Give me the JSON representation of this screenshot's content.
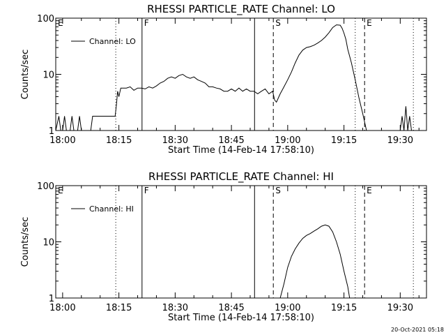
{
  "footer": {
    "timestamp": "20-Oct-2021 05:18"
  },
  "chart_data": [
    {
      "type": "line",
      "title": "RHESSI PARTICLE_RATE Channel: LO",
      "xlabel": "Start Time (14-Feb-14 17:58:10)",
      "ylabel": "Counts/sec",
      "xlim": [
        "17:58:10",
        "19:37:00"
      ],
      "ylim": [
        1,
        100
      ],
      "yscale": "log",
      "x_tick_labels": [
        "18:00",
        "18:15",
        "18:30",
        "18:45",
        "19:00",
        "19:15",
        "19:30"
      ],
      "y_tick_labels": [
        "1",
        "10",
        "100"
      ],
      "legend": {
        "entries": [
          "Channel: LO"
        ],
        "position": "top-left"
      },
      "event_markers": [
        {
          "label": "E",
          "time": "17:58:10",
          "style": "dotted"
        },
        {
          "label": "",
          "time": "18:14:10",
          "style": "dotted"
        },
        {
          "label": "F",
          "time": "18:21:10",
          "style": "solid"
        },
        {
          "label": "",
          "time": "18:51:10",
          "style": "solid"
        },
        {
          "label": "S",
          "time": "18:56:10",
          "style": "dashed"
        },
        {
          "label": "",
          "time": "19:18:00",
          "style": "dotted"
        },
        {
          "label": "E",
          "time": "19:20:30",
          "style": "dashed"
        },
        {
          "label": "",
          "time": "19:33:30",
          "style": "dotted"
        }
      ],
      "series": [
        {
          "name": "Channel: LO",
          "x": [
            "17:58:10",
            "17:59:00",
            "17:59:30",
            "18:00:00",
            "18:00:30",
            "18:01:00",
            "18:01:30",
            "18:02:00",
            "18:02:30",
            "18:03:00",
            "18:03:30",
            "18:04:00",
            "18:04:30",
            "18:05:00",
            "18:05:30",
            "18:06:00",
            "18:06:30",
            "18:07:00",
            "18:07:30",
            "18:08:00",
            "18:09:00",
            "18:10:00",
            "18:11:00",
            "18:12:00",
            "18:13:00",
            "18:14:00",
            "18:14:20",
            "18:14:40",
            "18:15:00",
            "18:15:30",
            "18:16:00",
            "18:17:00",
            "18:18:00",
            "18:19:00",
            "18:20:00",
            "18:21:00",
            "18:22:00",
            "18:23:00",
            "18:24:00",
            "18:25:00",
            "18:26:00",
            "18:27:00",
            "18:28:00",
            "18:29:00",
            "18:30:00",
            "18:31:00",
            "18:32:00",
            "18:33:00",
            "18:34:00",
            "18:35:00",
            "18:36:00",
            "18:37:00",
            "18:38:00",
            "18:39:00",
            "18:40:00",
            "18:41:00",
            "18:42:00",
            "18:43:00",
            "18:44:00",
            "18:45:00",
            "18:46:00",
            "18:47:00",
            "18:48:00",
            "18:49:00",
            "18:50:00",
            "18:51:00",
            "18:52:00",
            "18:53:00",
            "18:54:00",
            "18:55:00",
            "18:56:00",
            "18:56:30",
            "18:57:00",
            "18:58:00",
            "18:59:00",
            "19:00:00",
            "19:01:00",
            "19:02:00",
            "19:03:00",
            "19:04:00",
            "19:05:00",
            "19:06:00",
            "19:07:00",
            "19:08:00",
            "19:09:00",
            "19:10:00",
            "19:11:00",
            "19:12:00",
            "19:13:00",
            "19:14:00",
            "19:14:30",
            "19:15:00",
            "19:15:30",
            "19:16:00",
            "19:17:00",
            "19:18:00",
            "19:19:00",
            "19:20:00",
            "19:21:00",
            "19:22:00",
            "19:23:00",
            "19:24:00",
            "19:25:00",
            "19:26:00",
            "19:27:00",
            "19:28:00",
            "19:29:00",
            "19:30:00",
            "19:30:30",
            "19:31:00",
            "19:31:30",
            "19:32:00",
            "19:32:30",
            "19:33:00",
            "19:33:30",
            "19:34:00"
          ],
          "y": [
            1.0,
            1.8,
            1.0,
            1.0,
            1.8,
            1.0,
            1.0,
            1.0,
            1.8,
            1.0,
            1.0,
            1.0,
            1.8,
            1.0,
            1.0,
            1.0,
            1.0,
            1.0,
            1.0,
            1.8,
            1.8,
            1.8,
            1.8,
            1.8,
            1.8,
            1.8,
            2.8,
            5.0,
            4.0,
            5.7,
            5.7,
            5.7,
            6.0,
            5.2,
            5.7,
            5.7,
            5.5,
            6.0,
            5.7,
            6.2,
            7.0,
            7.5,
            8.5,
            9.0,
            8.5,
            9.5,
            10.0,
            9.0,
            8.5,
            9.0,
            8.0,
            7.5,
            7.0,
            6.0,
            6.0,
            5.7,
            5.5,
            5.0,
            5.0,
            5.5,
            5.0,
            5.7,
            5.0,
            5.5,
            5.0,
            5.0,
            4.5,
            5.0,
            5.5,
            4.5,
            5.0,
            3.5,
            3.2,
            4.5,
            6.0,
            8.0,
            11.0,
            16.0,
            22.0,
            27.0,
            30.0,
            31.0,
            33.0,
            36.0,
            40.0,
            46.0,
            55.0,
            68.0,
            76.0,
            75.0,
            66.0,
            54.0,
            42.0,
            28.0,
            16.0,
            8.0,
            3.8,
            2.0,
            1.0,
            1.0,
            1.0,
            1.0,
            1.0,
            1.0,
            1.0,
            1.0,
            1.0,
            1.0,
            1.8,
            1.0,
            2.7,
            1.0,
            1.8,
            1.0,
            1.0,
            1.0
          ]
        }
      ]
    },
    {
      "type": "line",
      "title": "RHESSI PARTICLE_RATE Channel: HI",
      "xlabel": "Start Time (14-Feb-14 17:58:10)",
      "ylabel": "Counts/sec",
      "xlim": [
        "17:58:10",
        "19:37:00"
      ],
      "ylim": [
        1,
        100
      ],
      "yscale": "log",
      "x_tick_labels": [
        "18:00",
        "18:15",
        "18:30",
        "18:45",
        "19:00",
        "19:15",
        "19:30"
      ],
      "y_tick_labels": [
        "1",
        "10",
        "100"
      ],
      "legend": {
        "entries": [
          "Channel: HI"
        ],
        "position": "top-left"
      },
      "event_markers": [
        {
          "label": "E",
          "time": "17:58:10",
          "style": "dotted"
        },
        {
          "label": "",
          "time": "18:14:10",
          "style": "dotted"
        },
        {
          "label": "F",
          "time": "18:21:10",
          "style": "solid"
        },
        {
          "label": "",
          "time": "18:51:10",
          "style": "solid"
        },
        {
          "label": "S",
          "time": "18:56:10",
          "style": "dashed"
        },
        {
          "label": "",
          "time": "19:18:00",
          "style": "dotted"
        },
        {
          "label": "E",
          "time": "19:20:30",
          "style": "dashed"
        },
        {
          "label": "",
          "time": "19:33:30",
          "style": "dotted"
        }
      ],
      "series": [
        {
          "name": "Channel: HI",
          "x": [
            "18:58:00",
            "18:59:00",
            "19:00:00",
            "19:01:00",
            "19:02:00",
            "19:03:00",
            "19:04:00",
            "19:05:00",
            "19:06:00",
            "19:07:00",
            "19:08:00",
            "19:09:00",
            "19:10:00",
            "19:11:00",
            "19:12:00",
            "19:13:00",
            "19:14:00",
            "19:15:00",
            "19:16:00",
            "19:16:30"
          ],
          "y": [
            1.0,
            1.8,
            3.5,
            5.5,
            7.5,
            9.5,
            11.5,
            13.0,
            14.0,
            15.5,
            17.0,
            19.0,
            20.0,
            19.0,
            15.0,
            10.0,
            6.0,
            3.0,
            1.6,
            1.0
          ]
        }
      ]
    }
  ]
}
